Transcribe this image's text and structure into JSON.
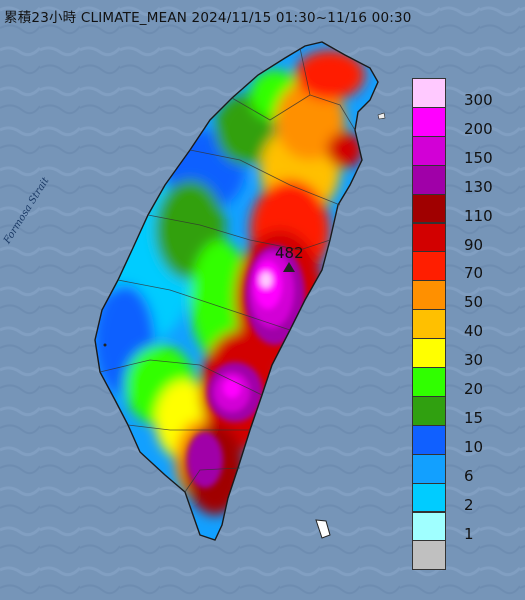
{
  "title": "累積23小時 CLIMATE_MEAN 2024/11/15 01:30~11/16 00:30",
  "sea_label": "Formosa Strait",
  "peak_value": "482",
  "colors": {
    "sea": "#6f8fb3",
    "sea_light": "#8aa6c8",
    "coast": "#1a1a1a"
  },
  "legend": {
    "items": [
      {
        "label": "300",
        "color": "#ffc9ff"
      },
      {
        "label": "200",
        "color": "#ff00ff"
      },
      {
        "label": "150",
        "color": "#d200d6"
      },
      {
        "label": "130",
        "color": "#a000a8"
      },
      {
        "label": "110",
        "color": "#a00000"
      },
      {
        "label": "90",
        "color": "#d20000"
      },
      {
        "label": "70",
        "color": "#ff1e00"
      },
      {
        "label": "50",
        "color": "#ff9000"
      },
      {
        "label": "40",
        "color": "#ffc000"
      },
      {
        "label": "30",
        "color": "#ffff00"
      },
      {
        "label": "20",
        "color": "#30ff00"
      },
      {
        "label": "15",
        "color": "#30a010"
      },
      {
        "label": "10",
        "color": "#1060ff"
      },
      {
        "label": "6",
        "color": "#12a0ff"
      },
      {
        "label": "2",
        "color": "#00ccff"
      },
      {
        "label": "1",
        "color": "#a0ffff"
      },
      {
        "label": "",
        "color": "#c0c0c0"
      }
    ]
  }
}
